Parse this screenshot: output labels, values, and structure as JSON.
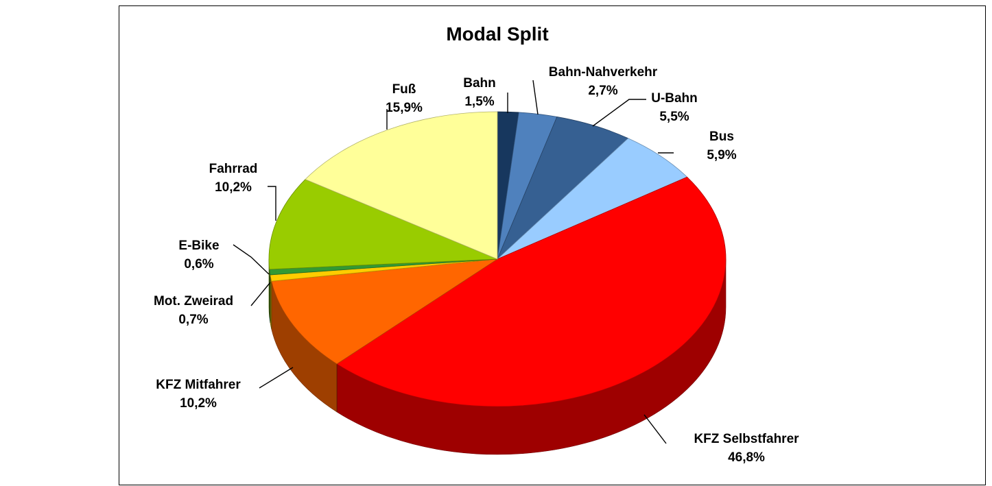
{
  "chart_data": {
    "type": "pie",
    "title": "Modal Split",
    "categories": [
      "Bahn",
      "Bahn-Nahverkehr",
      "U-Bahn",
      "Bus",
      "KFZ Selbstfahrer",
      "KFZ Mitfahrer",
      "Mot. Zweirad",
      "E-Bike",
      "Fahrrad",
      "Fuß"
    ],
    "values": [
      1.5,
      2.7,
      5.5,
      5.9,
      46.8,
      10.2,
      0.7,
      0.6,
      10.2,
      15.9
    ],
    "value_labels": [
      "1,5%",
      "2,7%",
      "5,5%",
      "5,9%",
      "46,8%",
      "10,2%",
      "0,7%",
      "0,6%",
      "10,2%",
      "15,9%"
    ],
    "colors": [
      "#17375e",
      "#4f81bd",
      "#366092",
      "#99ccff",
      "#ff0000",
      "#ff6600",
      "#ffcc00",
      "#339933",
      "#99cc00",
      "#ffff99"
    ],
    "style": "3d-tilted",
    "legend": "none"
  }
}
